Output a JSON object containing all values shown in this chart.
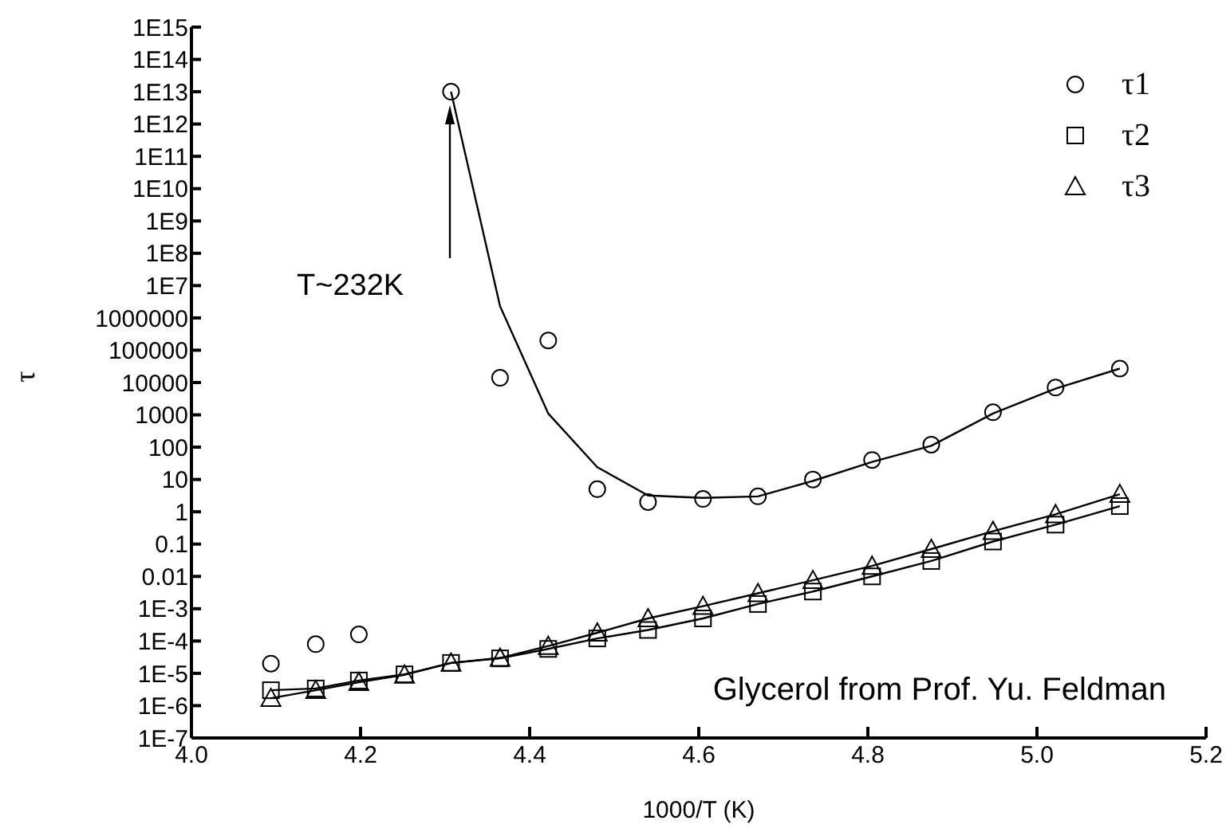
{
  "chart_data": {
    "type": "scatter",
    "xlabel": "1000/T (K)",
    "ylabel": "τ",
    "x": [
      4.094,
      4.147,
      4.198,
      4.252,
      4.307,
      4.365,
      4.422,
      4.48,
      4.54,
      4.605,
      4.67,
      4.735,
      4.805,
      4.875,
      4.948,
      5.022,
      5.098
    ],
    "series": [
      {
        "name": "τ1",
        "marker": "circle",
        "color": "#000000",
        "values": [
          2e-05,
          8e-05,
          0.00016,
          null,
          10000000000000.0,
          14000,
          200000,
          5,
          2,
          2.5,
          3,
          10,
          40,
          120,
          1200,
          7000,
          27000
        ]
      },
      {
        "type": "line",
        "marker": "none",
        "color": "#000000",
        "x": [
          4.307,
          4.365,
          4.422,
          4.48,
          4.54,
          4.605,
          4.67,
          4.735,
          4.805,
          4.875,
          4.948,
          5.022,
          5.098
        ],
        "values": [
          10000000000000.0,
          2300000,
          1100,
          24,
          3.2,
          2.7,
          3,
          9,
          35,
          110,
          1100,
          6500,
          27000
        ]
      },
      {
        "name": "τ2",
        "type": "line",
        "marker": "square",
        "color": "#000000",
        "values": [
          3e-06,
          3.4e-06,
          6e-06,
          9.3e-06,
          2.1e-05,
          2.9e-05,
          5.7e-05,
          0.00012,
          0.00022,
          0.0005,
          0.0014,
          0.0034,
          0.01,
          0.03,
          0.12,
          0.4,
          1.5
        ]
      },
      {
        "name": "τ3",
        "type": "line",
        "marker": "triangle",
        "color": "#000000",
        "values": [
          1.7e-06,
          3e-06,
          5.3e-06,
          9e-06,
          2.1e-05,
          3e-05,
          7e-05,
          0.00018,
          0.0005,
          0.0012,
          0.003,
          0.0076,
          0.021,
          0.07,
          0.25,
          0.83,
          3.5
        ]
      }
    ],
    "log": "y",
    "xlim": [
      4.0,
      5.2
    ],
    "xticks": [
      {
        "value": 4.0,
        "label": "4.0"
      },
      4.2,
      4.4,
      4.6,
      4.8,
      {
        "value": 5.0,
        "label": "5.0"
      },
      5.2
    ],
    "ylim": [
      1e-07,
      1000000000000000.0
    ],
    "yticks": [
      {
        "value": 1e-07,
        "label": "1E-7"
      },
      {
        "value": 1e-06,
        "label": "1E-6"
      },
      {
        "value": 1e-05,
        "label": "1E-5"
      },
      {
        "value": 0.0001,
        "label": "1E-4"
      },
      {
        "value": 0.001,
        "label": "1E-3"
      },
      0.01,
      0.1,
      1,
      10,
      100,
      1000,
      10000,
      100000,
      1000000,
      {
        "value": 10000000.0,
        "label": "1E7"
      },
      {
        "value": 100000000.0,
        "label": "1E8"
      },
      {
        "value": 1000000000.0,
        "label": "1E9"
      },
      {
        "value": 10000000000.0,
        "label": "1E10"
      },
      {
        "value": 100000000000.0,
        "label": "1E11"
      },
      {
        "value": 1000000000000.0,
        "label": "1E12"
      },
      {
        "value": 10000000000000.0,
        "label": "1E13"
      },
      {
        "value": 100000000000000.0,
        "label": "1E14"
      },
      {
        "value": 1000000000000000.0,
        "label": "1E15"
      }
    ],
    "grid": false,
    "legend": "top right",
    "annotations": [
      "T~232K",
      "Glycerol from Prof. Yu. Feldman"
    ]
  }
}
